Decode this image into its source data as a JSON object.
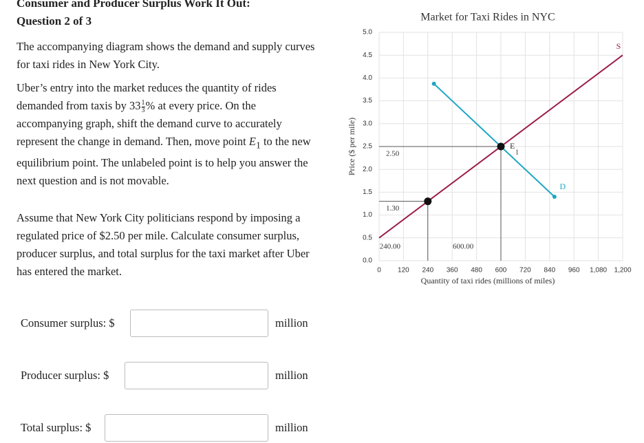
{
  "header": {
    "title": "Consumer and Producer Surplus Work It Out:",
    "question": "Question 2 of 3"
  },
  "intro": "The accompanying diagram shows the demand and supply curves for taxi rides in New York City.",
  "instructions": {
    "part1": "Uber’s entry into the market reduces the quantity of rides demanded from taxis by 33",
    "fraction_num": "1",
    "fraction_den": "3",
    "part2": "% at every price. On the accompanying graph, shift the demand curve to accurately represent the change in demand. Then, move point ",
    "point": "E",
    "point_sub": "1",
    "part3": " to the new equilibrium point. The unlabeled point is to help you answer the next question and is not movable."
  },
  "question": "Assume that New York City politicians respond by imposing a regulated price of $2.50 per mile. Calculate consumer surplus, producer surplus, and total surplus for the taxi market after Uber has entered the market.",
  "answers": [
    {
      "label": "Consumer surplus: $",
      "unit": "million"
    },
    {
      "label": "Producer surplus: $",
      "unit": "million"
    },
    {
      "label": "Total surplus: $",
      "unit": "million"
    }
  ],
  "chart": {
    "type": "line",
    "title": "Market for Taxi Rides in NYC",
    "x_label": "Quantity of taxi rides (millions of miles)",
    "y_label": "Price ($ per mile)",
    "xlim": [
      0,
      1200
    ],
    "ylim": [
      0,
      5
    ],
    "xticks": [
      0,
      120,
      240,
      360,
      480,
      600,
      720,
      840,
      960,
      {
        "value": 1080,
        "label": "1,080"
      },
      {
        "value": 1200,
        "label": "1,200"
      }
    ],
    "yticks": [
      {
        "value": 0,
        "label": "0.0"
      },
      {
        "value": 0.5,
        "label": "0.5"
      },
      {
        "value": 1,
        "label": "1.0"
      },
      {
        "value": 1.5,
        "label": "1.5"
      },
      {
        "value": 2,
        "label": "2.0"
      },
      {
        "value": 2.5,
        "label": "2.5"
      },
      {
        "value": 3,
        "label": "3.0"
      },
      {
        "value": 3.5,
        "label": "3.5"
      },
      {
        "value": 4,
        "label": "4.0"
      },
      {
        "value": 4.5,
        "label": "4.5"
      },
      {
        "value": 5,
        "label": "5.0"
      }
    ],
    "grid": true,
    "series": [
      {
        "name": "S",
        "color": "#9b1b4b",
        "x": [
          0,
          1200
        ],
        "y": [
          0.5,
          4.5
        ]
      },
      {
        "name": "D",
        "color": "#1ea6c4",
        "x": [
          270,
          864
        ],
        "y": [
          3.875,
          1.4
        ]
      }
    ],
    "points": [
      {
        "name": "E",
        "subscript": "1",
        "x": 600,
        "y": 2.5,
        "x_label": "600.00",
        "y_label": "2.50"
      },
      {
        "x": 240,
        "y": 1.3,
        "x_label": "240.00",
        "y_label": "1.30"
      }
    ]
  }
}
